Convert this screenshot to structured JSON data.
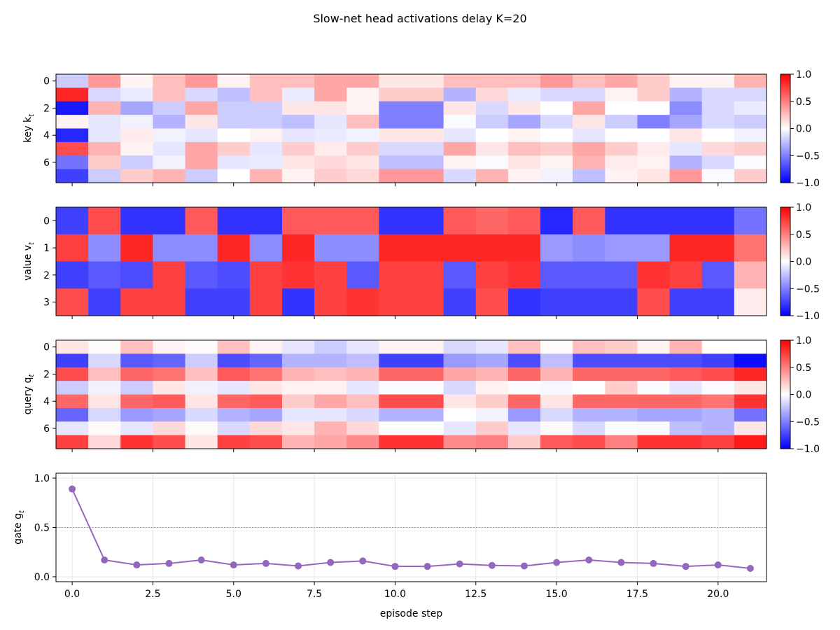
{
  "title": "Slow-net head activations  delay K=20",
  "chart_data": [
    {
      "type": "heatmap",
      "ylabel": "key  k_t",
      "colormap": "bwr",
      "vmin": -1.0,
      "vmax": 1.0,
      "colorbar_ticks": [
        "1.0",
        "0.5",
        "0.0",
        "−0.5",
        "−1.0"
      ],
      "yticks": [
        0,
        2,
        4,
        6
      ],
      "x": [
        0,
        1,
        2,
        3,
        4,
        5,
        6,
        7,
        8,
        9,
        10,
        11,
        12,
        13,
        14,
        15,
        16,
        17,
        18,
        19,
        20,
        21
      ],
      "rows": [
        [
          -0.2,
          0.4,
          0.05,
          0.25,
          0.4,
          0.05,
          0.25,
          0.25,
          0.35,
          0.35,
          0.1,
          0.1,
          0.25,
          0.25,
          0.25,
          0.4,
          0.25,
          0.35,
          0.2,
          0.05,
          0.05,
          0.3
        ],
        [
          0.85,
          -0.15,
          -0.08,
          0.25,
          -0.15,
          -0.25,
          0.25,
          -0.08,
          0.35,
          0.05,
          0.2,
          0.2,
          -0.3,
          0.15,
          -0.08,
          -0.15,
          -0.15,
          0.05,
          0.2,
          -0.3,
          -0.15,
          -0.15
        ],
        [
          -0.9,
          0.3,
          -0.35,
          -0.2,
          0.35,
          -0.2,
          -0.2,
          0.1,
          0.1,
          0.05,
          -0.5,
          -0.5,
          0.1,
          -0.15,
          0.1,
          0.0,
          0.35,
          0.0,
          0.0,
          -0.45,
          -0.15,
          -0.08
        ],
        [
          0.05,
          -0.1,
          -0.05,
          -0.3,
          0.1,
          -0.2,
          -0.2,
          -0.25,
          -0.1,
          0.25,
          -0.5,
          -0.5,
          -0.02,
          -0.2,
          -0.35,
          -0.15,
          0.1,
          -0.2,
          -0.5,
          -0.35,
          -0.15,
          -0.2
        ],
        [
          -0.85,
          -0.1,
          0.08,
          -0.05,
          -0.1,
          0.0,
          0.05,
          -0.1,
          -0.08,
          -0.05,
          0.1,
          0.1,
          -0.1,
          0.0,
          0.05,
          0.0,
          -0.1,
          0.0,
          0.0,
          0.1,
          0.0,
          -0.05
        ],
        [
          0.7,
          0.3,
          0.05,
          -0.1,
          0.35,
          0.2,
          -0.1,
          0.2,
          0.08,
          0.2,
          -0.15,
          -0.15,
          0.35,
          0.1,
          0.25,
          0.2,
          0.35,
          0.2,
          0.08,
          -0.1,
          0.15,
          0.2
        ],
        [
          -0.55,
          0.2,
          -0.2,
          -0.05,
          0.35,
          -0.1,
          -0.08,
          0.1,
          0.15,
          0.1,
          -0.25,
          -0.25,
          0.05,
          -0.02,
          0.1,
          0.05,
          0.3,
          0.08,
          0.05,
          -0.3,
          -0.15,
          -0.02
        ],
        [
          -0.75,
          -0.2,
          0.2,
          0.3,
          -0.2,
          0.0,
          0.3,
          0.05,
          0.2,
          0.15,
          0.4,
          0.4,
          -0.15,
          0.3,
          0.05,
          -0.05,
          -0.25,
          0.05,
          0.1,
          0.4,
          -0.02,
          0.2
        ]
      ]
    },
    {
      "type": "heatmap",
      "ylabel": "value  v_t",
      "colormap": "bwr",
      "vmin": -1.0,
      "vmax": 1.0,
      "colorbar_ticks": [
        "1.0",
        "0.5",
        "0.0",
        "−0.5",
        "−1.0"
      ],
      "yticks": [
        0,
        1,
        2,
        3
      ],
      "x": [
        0,
        1,
        2,
        3,
        4,
        5,
        6,
        7,
        8,
        9,
        10,
        11,
        12,
        13,
        14,
        15,
        16,
        17,
        18,
        19,
        20,
        21
      ],
      "rows": [
        [
          -0.75,
          0.7,
          -0.8,
          -0.8,
          0.65,
          -0.8,
          -0.8,
          0.65,
          0.65,
          0.65,
          -0.8,
          -0.8,
          0.65,
          0.6,
          0.65,
          -0.85,
          0.65,
          -0.8,
          -0.8,
          -0.8,
          -0.8,
          -0.55
        ],
        [
          0.75,
          -0.45,
          0.85,
          -0.45,
          -0.45,
          0.85,
          -0.45,
          0.85,
          -0.45,
          -0.45,
          0.85,
          0.85,
          0.85,
          0.85,
          0.85,
          -0.4,
          -0.45,
          -0.4,
          -0.4,
          0.85,
          0.85,
          0.55
        ],
        [
          -0.75,
          -0.65,
          -0.7,
          0.75,
          -0.65,
          -0.7,
          0.75,
          0.8,
          0.75,
          -0.65,
          0.75,
          0.75,
          -0.65,
          0.75,
          0.8,
          -0.65,
          -0.65,
          -0.65,
          0.8,
          0.75,
          -0.65,
          0.3
        ],
        [
          0.7,
          -0.75,
          0.75,
          0.75,
          -0.75,
          -0.75,
          0.75,
          -0.8,
          0.75,
          0.8,
          0.75,
          0.75,
          -0.75,
          0.7,
          -0.8,
          -0.75,
          -0.75,
          -0.75,
          0.7,
          -0.75,
          -0.75,
          0.08
        ]
      ]
    },
    {
      "type": "heatmap",
      "ylabel": "query  q_t",
      "colormap": "bwr",
      "vmin": -1.0,
      "vmax": 1.0,
      "colorbar_ticks": [
        "1.0",
        "0.5",
        "0.0",
        "−0.5",
        "−1.0"
      ],
      "yticks": [
        0,
        2,
        4,
        6
      ],
      "x": [
        0,
        1,
        2,
        3,
        4,
        5,
        6,
        7,
        8,
        9,
        10,
        11,
        12,
        13,
        14,
        15,
        16,
        17,
        18,
        19,
        20,
        21
      ],
      "rows": [
        [
          0.1,
          0.02,
          0.25,
          0.05,
          0.02,
          0.25,
          0.05,
          -0.1,
          -0.2,
          -0.1,
          0.05,
          0.05,
          -0.15,
          -0.1,
          0.25,
          0.02,
          0.25,
          0.2,
          0.05,
          0.3,
          0.0,
          0.0
        ],
        [
          -0.75,
          -0.15,
          -0.65,
          -0.6,
          -0.2,
          -0.7,
          -0.6,
          -0.3,
          -0.3,
          -0.25,
          -0.75,
          -0.75,
          -0.4,
          -0.35,
          -0.7,
          -0.25,
          -0.7,
          -0.7,
          -0.7,
          -0.7,
          -0.75,
          -0.95
        ],
        [
          0.7,
          0.25,
          0.6,
          0.55,
          0.25,
          0.65,
          0.55,
          0.3,
          0.25,
          0.3,
          0.6,
          0.6,
          0.35,
          0.3,
          0.6,
          0.3,
          0.6,
          0.6,
          0.6,
          0.65,
          0.7,
          0.85
        ],
        [
          -0.2,
          -0.05,
          -0.2,
          0.1,
          -0.05,
          -0.1,
          0.1,
          0.05,
          0.05,
          -0.1,
          -0.02,
          -0.02,
          -0.15,
          0.05,
          -0.02,
          -0.03,
          0.0,
          0.2,
          -0.02,
          -0.1,
          -0.02,
          0.1
        ],
        [
          0.6,
          0.1,
          0.6,
          0.65,
          0.1,
          0.6,
          0.65,
          0.2,
          0.35,
          0.25,
          0.7,
          0.7,
          0.1,
          0.2,
          0.6,
          0.1,
          0.6,
          0.6,
          0.6,
          0.6,
          0.55,
          0.8
        ],
        [
          -0.6,
          -0.15,
          -0.4,
          -0.35,
          -0.15,
          -0.3,
          -0.35,
          -0.1,
          -0.1,
          -0.15,
          -0.3,
          -0.3,
          0.0,
          -0.05,
          -0.4,
          -0.15,
          -0.3,
          -0.3,
          -0.35,
          -0.35,
          -0.3,
          -0.55
        ],
        [
          -0.1,
          0.02,
          -0.1,
          0.15,
          0.02,
          -0.15,
          0.15,
          0.1,
          0.3,
          0.15,
          0.0,
          0.0,
          -0.1,
          0.2,
          -0.1,
          0.02,
          -0.15,
          0.0,
          -0.02,
          -0.25,
          -0.3,
          0.1
        ],
        [
          0.75,
          0.15,
          0.8,
          0.7,
          0.1,
          0.75,
          0.7,
          0.3,
          0.35,
          0.45,
          0.8,
          0.8,
          0.45,
          0.5,
          0.2,
          0.65,
          0.7,
          0.5,
          0.8,
          0.8,
          0.75,
          0.9
        ]
      ]
    },
    {
      "type": "line",
      "ylabel": "gate  g_t",
      "xlabel": "episode step",
      "x": [
        0,
        1,
        2,
        3,
        4,
        5,
        6,
        7,
        8,
        9,
        10,
        11,
        12,
        13,
        14,
        15,
        16,
        17,
        18,
        19,
        20,
        21
      ],
      "values": [
        0.89,
        0.17,
        0.12,
        0.135,
        0.17,
        0.12,
        0.135,
        0.11,
        0.145,
        0.16,
        0.105,
        0.105,
        0.13,
        0.115,
        0.11,
        0.145,
        0.17,
        0.145,
        0.135,
        0.105,
        0.12,
        0.085
      ],
      "xlim": [
        -0.5,
        21.5
      ],
      "ylim": [
        -0.05,
        1.05
      ],
      "xticks": [
        "0.0",
        "2.5",
        "5.0",
        "7.5",
        "10.0",
        "12.5",
        "15.0",
        "17.5",
        "20.0"
      ],
      "yticks": [
        "0.0",
        "0.5",
        "1.0"
      ],
      "reference_line": 0.5,
      "grid": true,
      "color": "#9467bd"
    }
  ]
}
